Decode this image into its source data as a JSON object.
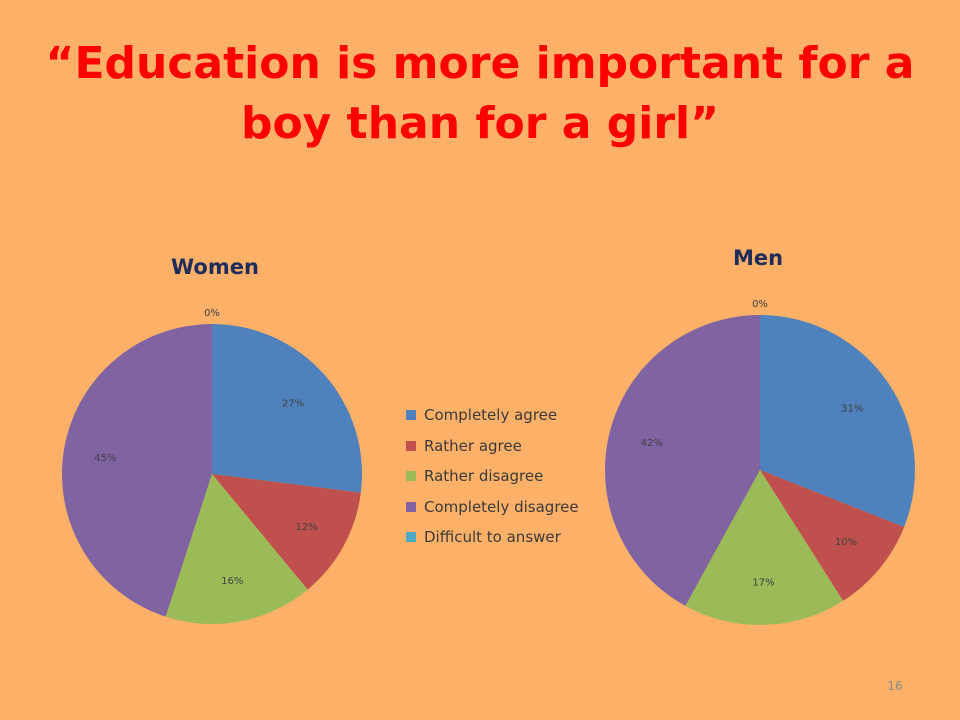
{
  "slide": {
    "title": "“Education is more important for a boy than for a girl”",
    "page_number": "16"
  },
  "chart_data": [
    {
      "type": "pie",
      "title": "Women",
      "categories": [
        "Completely agree",
        "Rather agree",
        "Rather disagree",
        "Completely disagree",
        "Difficult to answer"
      ],
      "values": [
        27,
        12,
        16,
        45,
        0
      ],
      "labels": [
        "27%",
        "12%",
        "16%",
        "45%",
        "0%"
      ],
      "colors": [
        "#4F81BD",
        "#C0504D",
        "#9BBB59",
        "#8064A2",
        "#4BACC6"
      ],
      "legend": "center"
    },
    {
      "type": "pie",
      "title": "Men",
      "categories": [
        "Completely agree",
        "Rather agree",
        "Rather disagree",
        "Completely disagree",
        "Difficult to answer"
      ],
      "values": [
        31,
        10,
        17,
        42,
        0
      ],
      "labels": [
        "31%",
        "10%",
        "17%",
        "42%",
        "0%"
      ],
      "colors": [
        "#4F81BD",
        "#C0504D",
        "#9BBB59",
        "#8064A2",
        "#4BACC6"
      ],
      "legend": "center"
    }
  ],
  "legend": {
    "items": [
      {
        "label": "Completely agree",
        "color": "#4F81BD"
      },
      {
        "label": "Rather agree",
        "color": "#C0504D"
      },
      {
        "label": "Rather disagree",
        "color": "#9BBB59"
      },
      {
        "label": "Completely disagree",
        "color": "#8064A2"
      },
      {
        "label": "Difficult to answer",
        "color": "#4BACC6"
      }
    ]
  }
}
